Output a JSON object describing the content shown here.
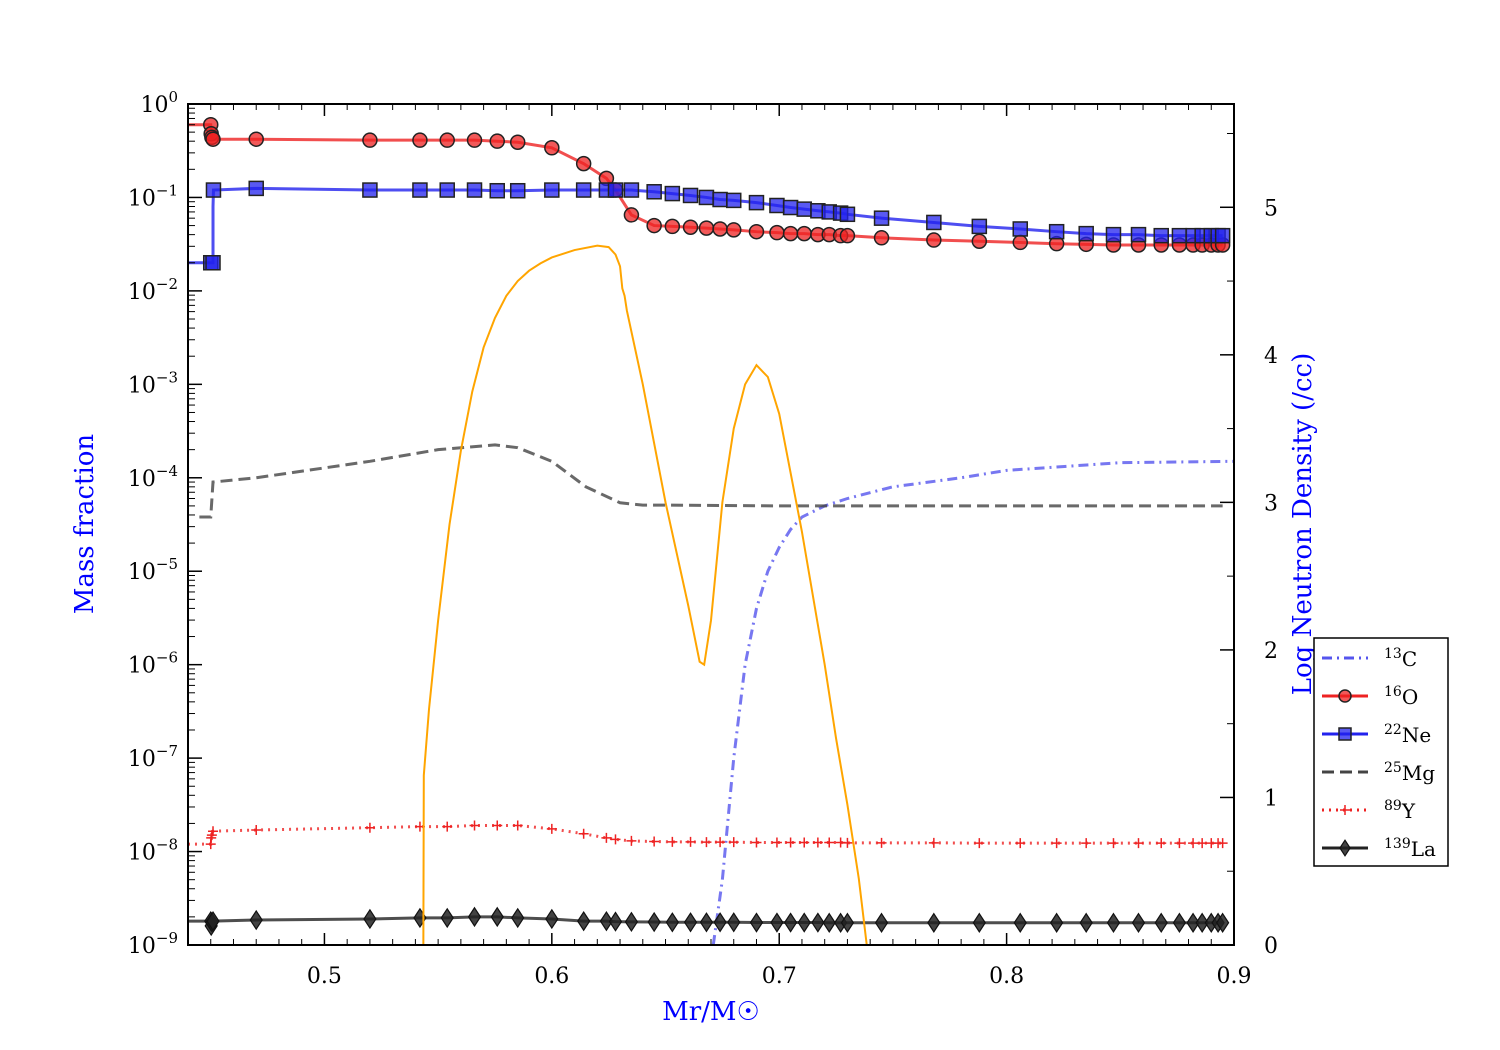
{
  "chart_data": {
    "type": "line",
    "xlabel": "Mr/M☉",
    "ylabel": "Mass fraction",
    "y2label": "Log Neutron Density (/cc)",
    "xlim": [
      0.44,
      0.9
    ],
    "ylim": [
      1e-09,
      1
    ],
    "y_scale": "log",
    "y2lim": [
      0,
      5.7
    ],
    "x_ticks": [
      "0.5",
      "0.6",
      "0.7",
      "0.8",
      "0.9"
    ],
    "x_tick_values": [
      0.5,
      0.6,
      0.7,
      0.8,
      0.9
    ],
    "y_ticks": [
      {
        "value": 1,
        "base": "10",
        "exp": "0"
      },
      {
        "value": 0.1,
        "base": "10",
        "exp": "−1"
      },
      {
        "value": 0.01,
        "base": "10",
        "exp": "−2"
      },
      {
        "value": 0.001,
        "base": "10",
        "exp": "−3"
      },
      {
        "value": 0.0001,
        "base": "10",
        "exp": "−4"
      },
      {
        "value": 1e-05,
        "base": "10",
        "exp": "−5"
      },
      {
        "value": 1e-06,
        "base": "10",
        "exp": "−6"
      },
      {
        "value": 1e-07,
        "base": "10",
        "exp": "−7"
      },
      {
        "value": 1e-08,
        "base": "10",
        "exp": "−8"
      },
      {
        "value": 1e-09,
        "base": "10",
        "exp": "−9"
      }
    ],
    "y2_ticks": [
      "0",
      "1",
      "2",
      "3",
      "4",
      "5"
    ],
    "y2_tick_values": [
      0,
      1,
      2,
      3,
      4,
      5
    ],
    "grid": false,
    "legend_placement": "right",
    "series": [
      {
        "name": "13C",
        "sup": "13",
        "element": "C",
        "color": "#5555ee",
        "style": "dashdot",
        "marker": "none",
        "axis": "left",
        "x": [
          0.671,
          0.675,
          0.68,
          0.685,
          0.69,
          0.695,
          0.7,
          0.705,
          0.71,
          0.72,
          0.73,
          0.75,
          0.78,
          0.8,
          0.85,
          0.9
        ],
        "y": [
          1e-09,
          5e-09,
          1e-07,
          1e-06,
          4e-06,
          1e-05,
          1.8e-05,
          2.8e-05,
          3.8e-05,
          5e-05,
          6e-05,
          8e-05,
          0.0001,
          0.00012,
          0.000145,
          0.00015
        ]
      },
      {
        "name": "16O",
        "sup": "16",
        "element": "O",
        "color": "#ee2222",
        "style": "solid",
        "marker": "circle",
        "axis": "left",
        "x": [
          0.44,
          0.45,
          0.4502,
          0.4505,
          0.451,
          0.47,
          0.52,
          0.542,
          0.554,
          0.566,
          0.576,
          0.585,
          0.6,
          0.614,
          0.624,
          0.628,
          0.635,
          0.645,
          0.653,
          0.661,
          0.668,
          0.674,
          0.68,
          0.69,
          0.699,
          0.705,
          0.711,
          0.717,
          0.722,
          0.727,
          0.73,
          0.745,
          0.768,
          0.788,
          0.806,
          0.822,
          0.835,
          0.847,
          0.858,
          0.868,
          0.876,
          0.882,
          0.886,
          0.89,
          0.893,
          0.895
        ],
        "y": [
          0.6,
          0.6,
          0.48,
          0.44,
          0.42,
          0.42,
          0.41,
          0.41,
          0.41,
          0.41,
          0.4,
          0.39,
          0.34,
          0.23,
          0.16,
          0.12,
          0.065,
          0.05,
          0.049,
          0.048,
          0.047,
          0.046,
          0.045,
          0.043,
          0.042,
          0.041,
          0.041,
          0.04,
          0.04,
          0.039,
          0.039,
          0.037,
          0.035,
          0.034,
          0.033,
          0.032,
          0.0315,
          0.031,
          0.031,
          0.031,
          0.031,
          0.031,
          0.031,
          0.031,
          0.031,
          0.031
        ],
        "marker_x": [
          0.45,
          0.4502,
          0.4505,
          0.451,
          0.47,
          0.52,
          0.542,
          0.554,
          0.566,
          0.576,
          0.585,
          0.6,
          0.614,
          0.624,
          0.628,
          0.635,
          0.645,
          0.653,
          0.661,
          0.668,
          0.674,
          0.68,
          0.69,
          0.699,
          0.705,
          0.711,
          0.717,
          0.722,
          0.727,
          0.73,
          0.745,
          0.768,
          0.788,
          0.806,
          0.822,
          0.835,
          0.847,
          0.858,
          0.868,
          0.876,
          0.882,
          0.886,
          0.89,
          0.893,
          0.895
        ]
      },
      {
        "name": "22Ne",
        "sup": "22",
        "element": "Ne",
        "color": "#2222ee",
        "style": "solid",
        "marker": "square",
        "axis": "left",
        "x": [
          0.44,
          0.45,
          0.451,
          0.451,
          0.4512,
          0.47,
          0.52,
          0.542,
          0.554,
          0.566,
          0.576,
          0.585,
          0.6,
          0.614,
          0.624,
          0.628,
          0.635,
          0.645,
          0.653,
          0.661,
          0.668,
          0.674,
          0.68,
          0.69,
          0.699,
          0.705,
          0.711,
          0.717,
          0.722,
          0.727,
          0.73,
          0.745,
          0.768,
          0.788,
          0.806,
          0.822,
          0.835,
          0.847,
          0.858,
          0.868,
          0.876,
          0.882,
          0.886,
          0.89,
          0.893,
          0.895
        ],
        "y": [
          0.02,
          0.02,
          0.02,
          0.08,
          0.12,
          0.125,
          0.12,
          0.12,
          0.12,
          0.12,
          0.118,
          0.118,
          0.12,
          0.12,
          0.12,
          0.12,
          0.12,
          0.115,
          0.11,
          0.105,
          0.1,
          0.095,
          0.093,
          0.088,
          0.082,
          0.078,
          0.075,
          0.072,
          0.07,
          0.068,
          0.066,
          0.06,
          0.054,
          0.049,
          0.046,
          0.043,
          0.041,
          0.04,
          0.04,
          0.039,
          0.039,
          0.039,
          0.039,
          0.039,
          0.039,
          0.039
        ],
        "marker_x": [
          0.45,
          0.451,
          0.4512,
          0.47,
          0.52,
          0.542,
          0.554,
          0.566,
          0.576,
          0.585,
          0.6,
          0.614,
          0.624,
          0.628,
          0.635,
          0.645,
          0.653,
          0.661,
          0.668,
          0.674,
          0.68,
          0.69,
          0.699,
          0.705,
          0.711,
          0.717,
          0.722,
          0.727,
          0.73,
          0.745,
          0.768,
          0.788,
          0.806,
          0.822,
          0.835,
          0.847,
          0.858,
          0.868,
          0.876,
          0.882,
          0.886,
          0.89,
          0.893,
          0.895
        ]
      },
      {
        "name": "25Mg",
        "sup": "25",
        "element": "Mg",
        "color": "#444444",
        "style": "dashed",
        "marker": "none",
        "axis": "left",
        "x": [
          0.445,
          0.45,
          0.451,
          0.47,
          0.52,
          0.55,
          0.575,
          0.585,
          0.6,
          0.615,
          0.63,
          0.64,
          0.65,
          0.7,
          0.8,
          0.895
        ],
        "y": [
          3.8e-05,
          3.8e-05,
          9e-05,
          0.0001,
          0.00015,
          0.0002,
          0.000225,
          0.00021,
          0.00015,
          8e-05,
          5.4e-05,
          5.1e-05,
          5.1e-05,
          5e-05,
          5e-05,
          5e-05
        ]
      },
      {
        "name": "89Y",
        "sup": "89",
        "element": "Y",
        "color": "#ee2222",
        "style": "dotted",
        "marker": "plus",
        "axis": "left",
        "x": [
          0.44,
          0.45,
          0.4502,
          0.4505,
          0.451,
          0.47,
          0.52,
          0.542,
          0.554,
          0.566,
          0.576,
          0.585,
          0.6,
          0.614,
          0.624,
          0.628,
          0.635,
          0.645,
          0.653,
          0.661,
          0.668,
          0.674,
          0.68,
          0.69,
          0.699,
          0.705,
          0.711,
          0.717,
          0.722,
          0.727,
          0.73,
          0.745,
          0.768,
          0.788,
          0.806,
          0.822,
          0.835,
          0.847,
          0.858,
          0.868,
          0.876,
          0.882,
          0.886,
          0.89,
          0.893,
          0.895
        ],
        "y": [
          1.2e-08,
          1.2e-08,
          1.4e-08,
          1.5e-08,
          1.65e-08,
          1.7e-08,
          1.8e-08,
          1.85e-08,
          1.85e-08,
          1.9e-08,
          1.9e-08,
          1.9e-08,
          1.75e-08,
          1.55e-08,
          1.4e-08,
          1.35e-08,
          1.3e-08,
          1.28e-08,
          1.27e-08,
          1.27e-08,
          1.26e-08,
          1.26e-08,
          1.26e-08,
          1.25e-08,
          1.25e-08,
          1.25e-08,
          1.25e-08,
          1.25e-08,
          1.25e-08,
          1.25e-08,
          1.24e-08,
          1.24e-08,
          1.24e-08,
          1.23e-08,
          1.23e-08,
          1.23e-08,
          1.23e-08,
          1.23e-08,
          1.23e-08,
          1.23e-08,
          1.23e-08,
          1.23e-08,
          1.23e-08,
          1.23e-08,
          1.23e-08,
          1.23e-08
        ],
        "marker_x": [
          0.45,
          0.4502,
          0.4505,
          0.451,
          0.47,
          0.52,
          0.542,
          0.554,
          0.566,
          0.576,
          0.585,
          0.6,
          0.614,
          0.624,
          0.628,
          0.635,
          0.645,
          0.653,
          0.661,
          0.668,
          0.674,
          0.68,
          0.69,
          0.699,
          0.705,
          0.711,
          0.717,
          0.722,
          0.727,
          0.73,
          0.745,
          0.768,
          0.788,
          0.806,
          0.822,
          0.835,
          0.847,
          0.858,
          0.868,
          0.876,
          0.882,
          0.886,
          0.89,
          0.893,
          0.895
        ]
      },
      {
        "name": "139La",
        "sup": "139",
        "element": "La",
        "color": "#222222",
        "style": "solid",
        "marker": "diamond",
        "axis": "left",
        "x": [
          0.44,
          0.45,
          0.4502,
          0.4505,
          0.451,
          0.47,
          0.52,
          0.542,
          0.554,
          0.566,
          0.576,
          0.585,
          0.6,
          0.614,
          0.624,
          0.628,
          0.635,
          0.645,
          0.653,
          0.661,
          0.668,
          0.674,
          0.68,
          0.69,
          0.699,
          0.705,
          0.711,
          0.717,
          0.722,
          0.727,
          0.73,
          0.745,
          0.768,
          0.788,
          0.806,
          0.822,
          0.835,
          0.847,
          0.858,
          0.868,
          0.876,
          0.882,
          0.886,
          0.89,
          0.893,
          0.895
        ],
        "y": [
          1.8e-09,
          1.8e-09,
          1.6e-09,
          1.75e-09,
          1.8e-09,
          1.85e-09,
          1.9e-09,
          1.95e-09,
          1.95e-09,
          2e-09,
          2e-09,
          1.95e-09,
          1.9e-09,
          1.8e-09,
          1.8e-09,
          1.78e-09,
          1.77e-09,
          1.76e-09,
          1.75e-09,
          1.75e-09,
          1.75e-09,
          1.75e-09,
          1.75e-09,
          1.74e-09,
          1.74e-09,
          1.74e-09,
          1.74e-09,
          1.74e-09,
          1.73e-09,
          1.73e-09,
          1.73e-09,
          1.73e-09,
          1.73e-09,
          1.73e-09,
          1.73e-09,
          1.73e-09,
          1.73e-09,
          1.73e-09,
          1.73e-09,
          1.73e-09,
          1.73e-09,
          1.73e-09,
          1.73e-09,
          1.73e-09,
          1.73e-09,
          1.73e-09
        ],
        "marker_x": [
          0.45,
          0.4502,
          0.4505,
          0.451,
          0.47,
          0.52,
          0.542,
          0.554,
          0.566,
          0.576,
          0.585,
          0.6,
          0.614,
          0.624,
          0.628,
          0.635,
          0.645,
          0.653,
          0.661,
          0.668,
          0.674,
          0.68,
          0.69,
          0.699,
          0.705,
          0.711,
          0.717,
          0.722,
          0.727,
          0.73,
          0.745,
          0.768,
          0.788,
          0.806,
          0.822,
          0.835,
          0.847,
          0.858,
          0.868,
          0.876,
          0.882,
          0.886,
          0.89,
          0.893,
          0.895
        ]
      },
      {
        "name": "",
        "color": "#ffa500",
        "style": "solid",
        "marker": "none",
        "axis": "right",
        "x": [
          0.5435,
          0.5437,
          0.546,
          0.55,
          0.555,
          0.56,
          0.565,
          0.57,
          0.575,
          0.58,
          0.585,
          0.59,
          0.595,
          0.6,
          0.61,
          0.62,
          0.625,
          0.628,
          0.63,
          0.631,
          0.632,
          0.633,
          0.64,
          0.65,
          0.66,
          0.665,
          0.667,
          0.67,
          0.675,
          0.68,
          0.685,
          0.69,
          0.695,
          0.7,
          0.705,
          0.71,
          0.715,
          0.72,
          0.725,
          0.73,
          0.735,
          0.7385
        ],
        "y": [
          0,
          1.15,
          1.6,
          2.2,
          2.85,
          3.35,
          3.75,
          4.05,
          4.25,
          4.4,
          4.5,
          4.57,
          4.62,
          4.66,
          4.71,
          4.74,
          4.73,
          4.68,
          4.6,
          4.45,
          4.4,
          4.3,
          3.8,
          3.0,
          2.3,
          1.92,
          1.9,
          2.2,
          3.0,
          3.5,
          3.8,
          3.93,
          3.85,
          3.6,
          3.2,
          2.8,
          2.35,
          1.9,
          1.4,
          0.95,
          0.45,
          0
        ]
      }
    ]
  }
}
